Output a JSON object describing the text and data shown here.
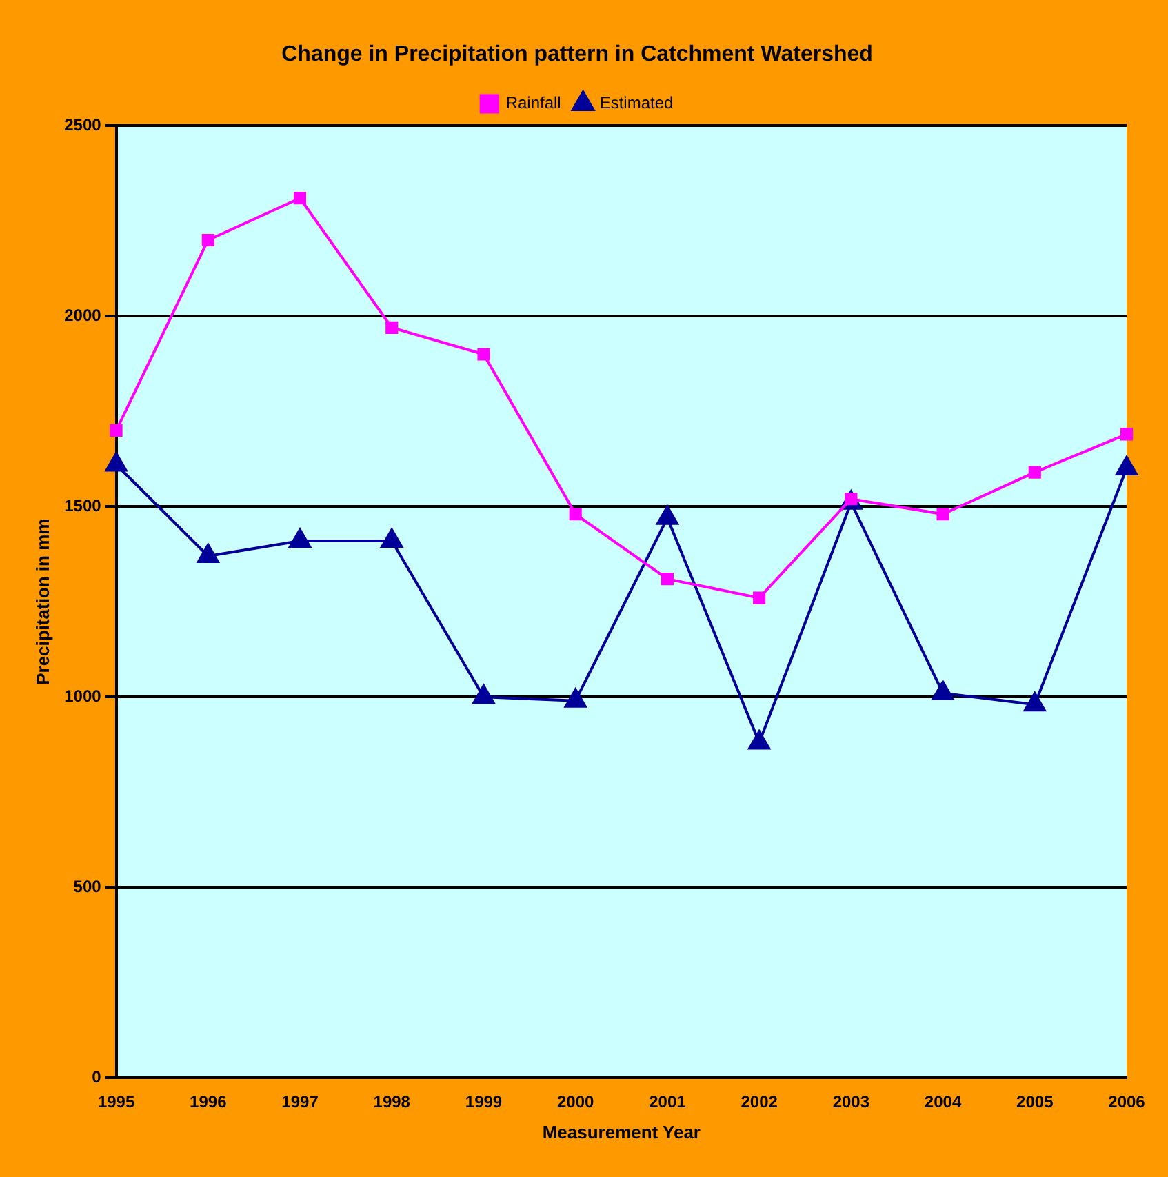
{
  "chart_data": {
    "type": "line",
    "title": "Change in Precipitation pattern in Catchment Watershed",
    "xlabel": "Measurement Year",
    "ylabel": "Precipitation in mm",
    "categories": [
      "1995",
      "1996",
      "1997",
      "1998",
      "1999",
      "2000",
      "2001",
      "2002",
      "2003",
      "2004",
      "2005",
      "2006"
    ],
    "series": [
      {
        "name": "Rainfall",
        "color": "#ff00ff",
        "marker": "square",
        "values": [
          1700,
          2200,
          2310,
          1970,
          1900,
          1480,
          1310,
          1260,
          1520,
          1480,
          1590,
          1690
        ]
      },
      {
        "name": "Estimated",
        "color": "#000099",
        "marker": "triangle",
        "values": [
          1610,
          1370,
          1410,
          1410,
          1000,
          990,
          1470,
          880,
          1510,
          1010,
          980,
          1600
        ]
      }
    ],
    "ylim": [
      0,
      2500
    ],
    "yticks": [
      0,
      500,
      1000,
      1500,
      2000,
      2500
    ],
    "grid": "y",
    "legend": "top"
  }
}
